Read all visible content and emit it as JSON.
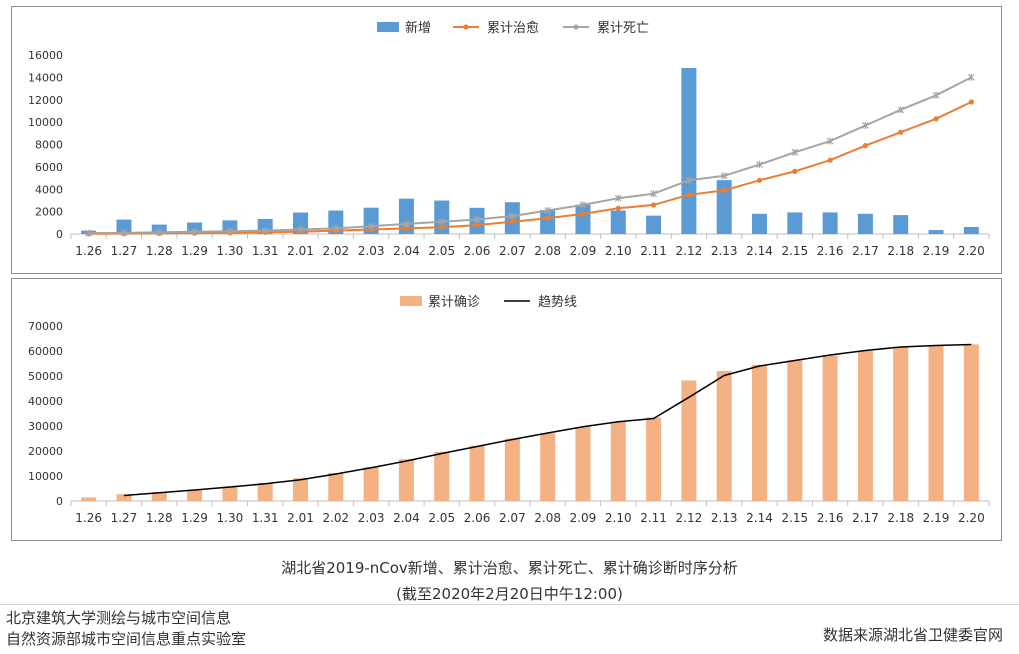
{
  "chart_data": [
    {
      "type": "bar+line",
      "title": "",
      "categories": [
        "1.26",
        "1.27",
        "1.28",
        "1.29",
        "1.30",
        "1.31",
        "2.01",
        "2.02",
        "2.03",
        "2.04",
        "2.05",
        "2.06",
        "2.07",
        "2.08",
        "2.09",
        "2.10",
        "2.11",
        "2.12",
        "2.13",
        "2.14",
        "2.15",
        "2.16",
        "2.17",
        "2.18",
        "2.19",
        "2.20"
      ],
      "series": [
        {
          "name": "新增",
          "kind": "bar",
          "color": "#5B9BD5",
          "values": [
            300,
            1290,
            840,
            1030,
            1220,
            1350,
            1920,
            2100,
            2350,
            3160,
            2990,
            2340,
            2840,
            2150,
            2620,
            2100,
            1640,
            14840,
            4820,
            1810,
            1930,
            1930,
            1810,
            1690,
            350,
            630
          ]
        },
        {
          "name": "累计治愈",
          "kind": "line",
          "color": "#ED7D31",
          "values": [
            30,
            40,
            50,
            80,
            100,
            150,
            200,
            300,
            400,
            500,
            600,
            800,
            1100,
            1400,
            1800,
            2300,
            2600,
            3500,
            3900,
            4800,
            5600,
            6600,
            7900,
            9100,
            10300,
            11800
          ]
        },
        {
          "name": "累计死亡",
          "kind": "line",
          "color": "#A5A5A5",
          "values": [
            80,
            100,
            150,
            200,
            250,
            300,
            400,
            500,
            700,
            900,
            1100,
            1300,
            1600,
            2100,
            2600,
            3200,
            3600,
            4800,
            5200,
            6200,
            7300,
            8300,
            9700,
            11100,
            12400,
            14000
          ]
        }
      ],
      "ylim": [
        0,
        16000
      ],
      "yticks": [
        0,
        2000,
        4000,
        6000,
        8000,
        10000,
        12000,
        14000,
        16000
      ],
      "legend": "top-center"
    },
    {
      "type": "bar+line",
      "title": "",
      "categories": [
        "1.26",
        "1.27",
        "1.28",
        "1.29",
        "1.30",
        "1.31",
        "2.01",
        "2.02",
        "2.03",
        "2.04",
        "2.05",
        "2.06",
        "2.07",
        "2.08",
        "2.09",
        "2.10",
        "2.11",
        "2.12",
        "2.13",
        "2.14",
        "2.15",
        "2.16",
        "2.17",
        "2.18",
        "2.19",
        "2.20"
      ],
      "series": [
        {
          "name": "累计确诊",
          "kind": "bar",
          "color": "#F4B183",
          "values": [
            1420,
            2710,
            3550,
            4590,
            5810,
            7150,
            9070,
            11180,
            13520,
            16680,
            19660,
            22110,
            24950,
            27100,
            29630,
            31730,
            33370,
            48210,
            51990,
            54410,
            56250,
            58180,
            59990,
            61680,
            62030,
            62660
          ]
        },
        {
          "name": "趋势线",
          "kind": "line",
          "color": "#000000",
          "values": [
            null,
            2200,
            3300,
            4400,
            5600,
            6900,
            8500,
            10800,
            13300,
            16000,
            19000,
            21800,
            24600,
            27200,
            29700,
            31700,
            33000,
            41500,
            50200,
            54000,
            56200,
            58400,
            60200,
            61600,
            62200,
            62600
          ]
        }
      ],
      "ylim": [
        0,
        70000
      ],
      "yticks": [
        0,
        10000,
        20000,
        30000,
        40000,
        50000,
        60000,
        70000
      ],
      "legend": "top-center"
    }
  ],
  "caption": {
    "line1": "湖北省2019-nCov新增、累计治愈、累计死亡、累计确诊断时序分析",
    "line2": "(截至2020年2月20日中午12:00)"
  },
  "credits": {
    "left_line1": "北京建筑大学测绘与城市空间信息",
    "left_line2": "自然资源部城市空间信息重点实验室",
    "right": "数据来源湖北省卫健委官网"
  }
}
